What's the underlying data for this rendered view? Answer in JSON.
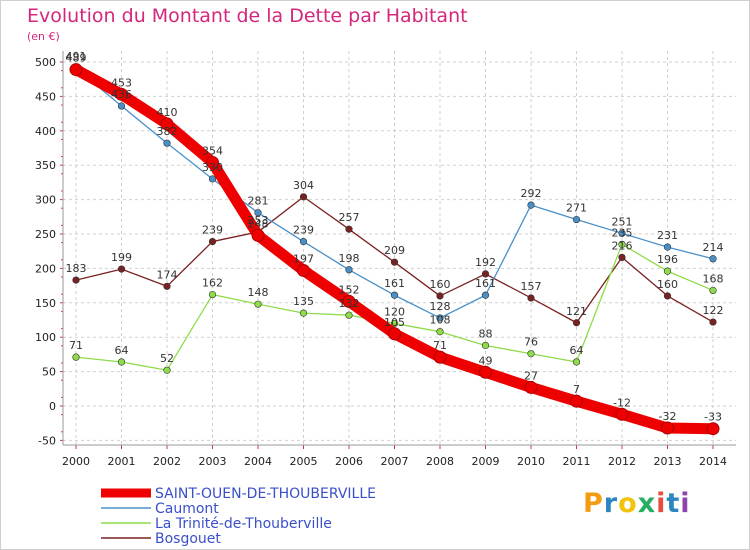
{
  "header": {
    "title": "Evolution du Montant de la Dette par Habitant",
    "unit": "(en €)"
  },
  "logo": {
    "text": "Proxiti",
    "letter_colors": [
      "#f39c12",
      "#2e86c1",
      "#f1c40f",
      "#27ae60",
      "#e74c3c",
      "#2e86c1",
      "#8e44ad"
    ]
  },
  "chart_data": {
    "type": "line",
    "title": "Evolution du Montant de la Dette par Habitant",
    "ylabel": "(en €)",
    "xlabel": "",
    "x": [
      "2000",
      "2001",
      "2002",
      "2003",
      "2004",
      "2005",
      "2006",
      "2007",
      "2008",
      "2009",
      "2010",
      "2011",
      "2012",
      "2013",
      "2014"
    ],
    "yticks": [
      "-50",
      "0",
      "50",
      "100",
      "150",
      "200",
      "250",
      "300",
      "350",
      "400",
      "450",
      "500"
    ],
    "ylim": [
      -50,
      500
    ],
    "grid": "horizontal dashed",
    "legend_position": "bottom-left",
    "series": [
      {
        "name": "SAINT-OUEN-DE-THOUBERVILLE",
        "color": "#ee0000",
        "values": [
          489,
          453,
          410,
          354,
          248,
          197,
          152,
          105,
          71,
          49,
          27,
          7,
          -12,
          -32,
          -33
        ],
        "labels": [
          "489",
          "453",
          "410",
          "354",
          "248",
          "197",
          "152",
          "105",
          "71",
          "49",
          "27",
          "7",
          "-12",
          "-32",
          "-33"
        ]
      },
      {
        "name": "Caumont",
        "color": "#4a90c8",
        "values": [
          491,
          436,
          382,
          330,
          281,
          239,
          198,
          161,
          128,
          161,
          292,
          271,
          251,
          231,
          214
        ],
        "labels": [
          "491",
          "436",
          "382",
          "330",
          "281",
          "239",
          "198",
          "161",
          "128",
          "161",
          "292",
          "271",
          "251",
          "231",
          "214"
        ]
      },
      {
        "name": "La Trinité-de-Thouberville",
        "color": "#8fdc4a",
        "values": [
          71,
          64,
          52,
          162,
          148,
          135,
          132,
          120,
          108,
          88,
          76,
          64,
          235,
          196,
          168
        ],
        "labels": [
          "71",
          "64",
          "52",
          "162",
          "148",
          "135",
          "132",
          "120",
          "108",
          "88",
          "76",
          "64",
          "235",
          "196",
          "168"
        ]
      },
      {
        "name": "Bosgouet",
        "color": "#7a2121",
        "values": [
          183,
          199,
          174,
          239,
          253,
          304,
          257,
          209,
          160,
          192,
          157,
          121,
          216,
          160,
          122
        ],
        "labels": [
          "183",
          "199",
          "174",
          "239",
          "253",
          "304",
          "257",
          "209",
          "160",
          "192",
          "157",
          "121",
          "216",
          "160",
          "122"
        ]
      }
    ]
  }
}
